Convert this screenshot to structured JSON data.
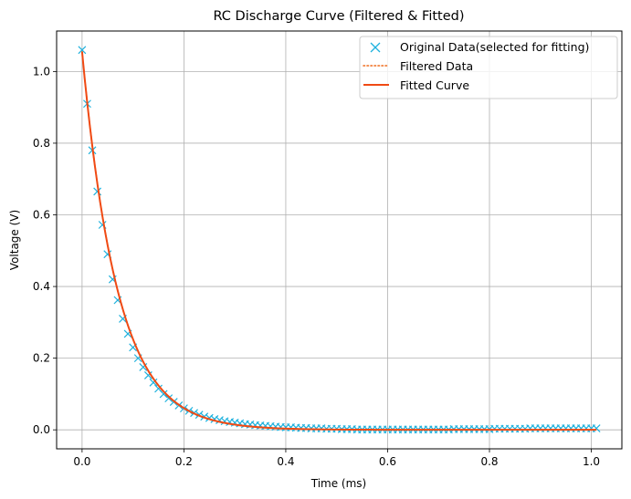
{
  "chart_data": {
    "type": "line",
    "title": "RC Discharge Curve (Filtered & Fitted)",
    "xlabel": "Time (ms)",
    "ylabel": "Voltage (V)",
    "xlim": [
      -0.05,
      1.06
    ],
    "ylim": [
      -0.053,
      1.113
    ],
    "grid": true,
    "legend_position": "top-right",
    "x_ticks": [
      {
        "value": 0.0,
        "label": "0.0"
      },
      {
        "value": 0.2,
        "label": "0.2"
      },
      {
        "value": 0.4,
        "label": "0.4"
      },
      {
        "value": 0.6,
        "label": "0.6"
      },
      {
        "value": 0.8,
        "label": "0.8"
      },
      {
        "value": 1.0,
        "label": "1.0"
      }
    ],
    "y_ticks": [
      {
        "value": 0.0,
        "label": "0.0"
      },
      {
        "value": 0.2,
        "label": "0.2"
      },
      {
        "value": 0.4,
        "label": "0.4"
      },
      {
        "value": 0.6,
        "label": "0.6"
      },
      {
        "value": 0.8,
        "label": "0.8"
      },
      {
        "value": 1.0,
        "label": "1.0"
      }
    ],
    "series": [
      {
        "name": "Original Data(selected for fitting)",
        "kind": "markers",
        "marker": "x",
        "color": "#1eb1dd",
        "x": [
          0.0,
          0.01,
          0.02,
          0.03,
          0.04,
          0.05,
          0.06,
          0.07,
          0.08,
          0.09,
          0.1,
          0.11,
          0.12,
          0.13,
          0.14,
          0.15,
          0.16,
          0.17,
          0.18,
          0.19,
          0.2,
          0.21,
          0.22,
          0.23,
          0.24,
          0.25,
          0.26,
          0.27,
          0.28,
          0.29,
          0.3,
          0.31,
          0.32,
          0.33,
          0.34,
          0.35,
          0.36,
          0.37,
          0.38,
          0.39,
          0.4,
          0.41,
          0.42,
          0.43,
          0.44,
          0.45,
          0.46,
          0.47,
          0.48,
          0.49,
          0.5,
          0.51,
          0.52,
          0.53,
          0.54,
          0.55,
          0.56,
          0.57,
          0.58,
          0.59,
          0.6,
          0.61,
          0.62,
          0.63,
          0.64,
          0.65,
          0.66,
          0.67,
          0.68,
          0.69,
          0.7,
          0.71,
          0.72,
          0.73,
          0.74,
          0.75,
          0.76,
          0.77,
          0.78,
          0.79,
          0.8,
          0.81,
          0.82,
          0.83,
          0.84,
          0.85,
          0.86,
          0.87,
          0.88,
          0.89,
          0.9,
          0.91,
          0.92,
          0.93,
          0.94,
          0.95,
          0.96,
          0.97,
          0.98,
          0.99,
          1.0,
          1.01
        ],
        "y": [
          1.06,
          0.91,
          0.78,
          0.665,
          0.572,
          0.49,
          0.42,
          0.362,
          0.31,
          0.268,
          0.23,
          0.2,
          0.175,
          0.152,
          0.132,
          0.115,
          0.1,
          0.088,
          0.078,
          0.068,
          0.06,
          0.053,
          0.047,
          0.042,
          0.037,
          0.033,
          0.03,
          0.027,
          0.024,
          0.022,
          0.02,
          0.018,
          0.016,
          0.015,
          0.013,
          0.012,
          0.011,
          0.01,
          0.009,
          0.008,
          0.007,
          0.007,
          0.006,
          0.005,
          0.005,
          0.004,
          0.004,
          0.004,
          0.003,
          0.003,
          0.003,
          0.002,
          0.002,
          0.002,
          0.001,
          0.001,
          0.001,
          0.001,
          0.001,
          0.001,
          0.001,
          0.001,
          0.001,
          0.001,
          0.001,
          0.001,
          0.001,
          0.001,
          0.001,
          0.001,
          0.001,
          0.001,
          0.001,
          0.002,
          0.002,
          0.002,
          0.002,
          0.002,
          0.002,
          0.002,
          0.002,
          0.003,
          0.003,
          0.003,
          0.003,
          0.003,
          0.003,
          0.003,
          0.004,
          0.004,
          0.004,
          0.004,
          0.004,
          0.004,
          0.004,
          0.004,
          0.004,
          0.004,
          0.004,
          0.004,
          0.004,
          0.004
        ]
      },
      {
        "name": "Filtered Data",
        "kind": "line",
        "dash": "dotted",
        "color": "#ef6c1c",
        "tau": 0.07,
        "v0": 1.055,
        "x_range": [
          0.0,
          1.01
        ]
      },
      {
        "name": "Fitted Curve",
        "kind": "line",
        "dash": "solid",
        "color": "#f04a14",
        "tau": 0.07,
        "v0": 1.055,
        "x_range": [
          0.0,
          1.01
        ]
      }
    ]
  }
}
